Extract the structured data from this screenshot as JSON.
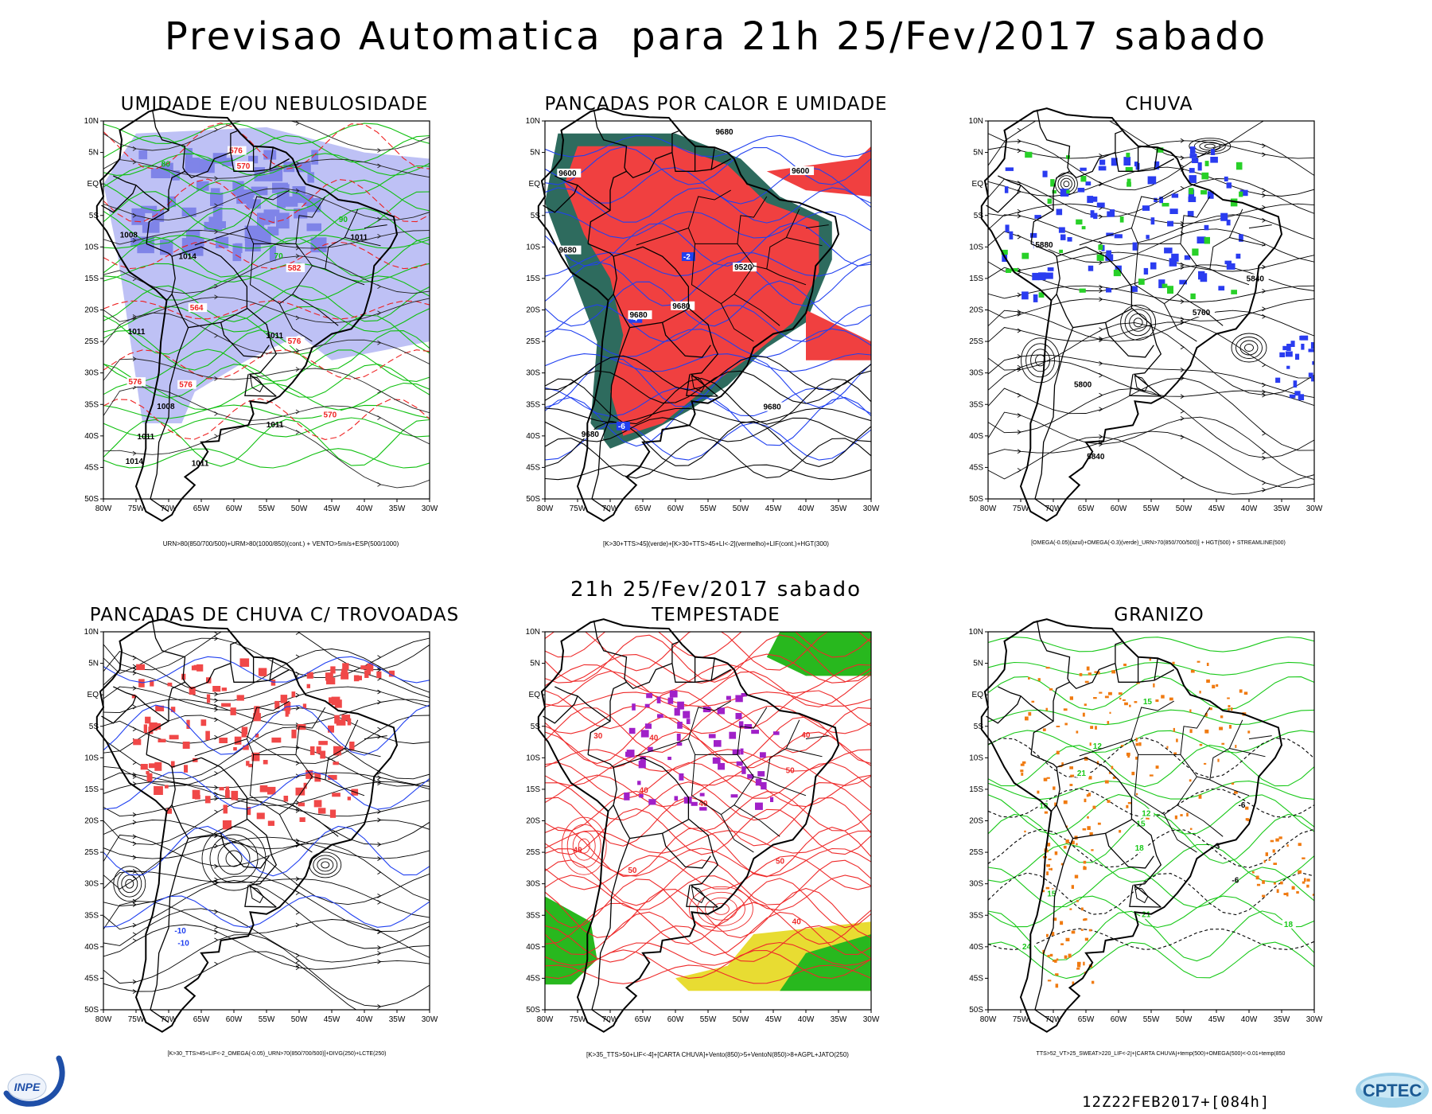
{
  "header": {
    "title": "Previsao Automatica  para 21h 25/Fev/2017 sabado",
    "mid_title": "21h 25/Fev/2017 sabado",
    "run_label": "12Z22FEB2017+[084h]"
  },
  "logos": {
    "left": "INPE",
    "right": "CPTEC"
  },
  "axes": {
    "lat_labels": [
      "10N",
      "5N",
      "EQ",
      "5S",
      "10S",
      "15S",
      "20S",
      "25S",
      "30S",
      "35S",
      "40S",
      "45S",
      "50S"
    ],
    "lon_labels": [
      "80W",
      "75W",
      "70W",
      "65W",
      "60W",
      "55W",
      "50W",
      "45W",
      "40W",
      "35W",
      "30W"
    ]
  },
  "panels": [
    {
      "title": "UMIDADE E/OU NEBULOSIDADE",
      "caption": "URN>80(850/700/500)+URM>80(1000/850)(cont.) + VENTO>5m/s+ESP(500/1000)",
      "contour_labels": [
        "576",
        "576",
        "576",
        "1011",
        "1011",
        "1011",
        "1008",
        "1011",
        "1014",
        "1014",
        "1011",
        "1011",
        "570",
        "570",
        "576",
        "582",
        "564",
        "1008",
        "80",
        "90",
        "70"
      ],
      "fills": {
        "humidity": "#aeb2f2",
        "humidity_dark": "#7f84e8"
      },
      "line_colors": {
        "green": "#10c010",
        "red": "#ee2020",
        "black": "#000000"
      }
    },
    {
      "title": "PANCADAS POR CALOR E UMIDADE",
      "caption": "[K>30+TTS>45](verde)+[K>30+TTS>45+LI<-2](vermelho)+LIF(cont.)+HGT(300)",
      "contour_labels": [
        "9680",
        "9680",
        "9680",
        "9680",
        "9680",
        "9680",
        "9600",
        "9600",
        "9520",
        "-2",
        "-4",
        "-6"
      ],
      "fills": {
        "red": "#f04040",
        "green": "#2e6b5e"
      },
      "line_colors": {
        "blue": "#2040f0",
        "black": "#000000"
      }
    },
    {
      "title": "CHUVA",
      "caption": "[OMEGA(-0.05)(azul)+OMEGA(-0.3)(verde)_URN>70(850/700/500)] + HGT(500) + STREAMLINE(500)",
      "contour_labels": [
        "5880",
        "5840",
        "5840",
        "5800",
        "5760"
      ],
      "fills": {
        "blue": "#2a3cf0",
        "green": "#28d028"
      },
      "line_colors": {
        "black": "#000000"
      }
    },
    {
      "title": "PANCADAS DE CHUVA C/ TROVOADAS",
      "caption": "[K>30_TTS>45+LIF<-2_OMEGA(-0.05)_URN>70(850/700/500)]+DIVG(250)+LCTE(250)",
      "contour_labels": [
        "-10",
        "-10"
      ],
      "fills": {
        "red": "#f04848"
      },
      "line_colors": {
        "blue": "#2040f0",
        "black": "#000000"
      }
    },
    {
      "title": "TEMPESTADE",
      "caption": "[K>35_TTS>50+LIF<-4]+[CARTA CHUVA]+Vento(850)>5+VentoN(850)>8+AGPL+JATO(250)",
      "contour_labels": [
        "40",
        "40",
        "50",
        "50",
        "50",
        "40",
        "30",
        "40",
        "40",
        "40"
      ],
      "fills": {
        "green": "#28b81e",
        "yellow": "#e8dc32",
        "purple": "#a020c8"
      },
      "line_colors": {
        "red": "#ee2a2a",
        "black": "#000000"
      }
    },
    {
      "title": "GRANIZO",
      "caption": "TTS>52_VT>25_SWEAT>220_LIF<-2]+[CARTA CHUVA]+temp(500)+OMEGA(500)<-0.01+temp(850",
      "contour_labels": [
        "18",
        "18",
        "21",
        "21",
        "24",
        "15",
        "15",
        "12",
        "12",
        "-6",
        "-6",
        "-3",
        "15",
        "18"
      ],
      "fills": {},
      "line_colors": {
        "green": "#18c818",
        "orange": "#f07a10",
        "black": "#000000"
      }
    }
  ]
}
